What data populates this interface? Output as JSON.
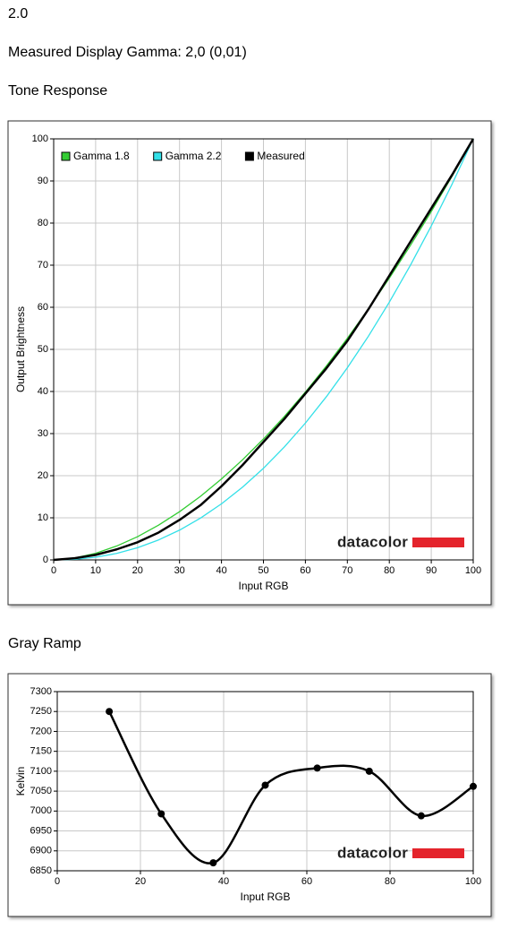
{
  "header": {
    "value": "2.0",
    "text": "Measured Display Gamma: 2,0 (0,01)"
  },
  "chart_data": [
    {
      "type": "line",
      "title": "Tone Response",
      "xlabel": "Input RGB",
      "ylabel": "Output Brightness",
      "watermark": "datacolor",
      "legend": "top-left",
      "grid": true,
      "smooth": false,
      "markers": false,
      "x": [
        0,
        5,
        10,
        15,
        20,
        25,
        30,
        35,
        40,
        45,
        50,
        55,
        60,
        65,
        70,
        75,
        80,
        85,
        90,
        95,
        100
      ],
      "series": [
        {
          "name": "Gamma 1.8",
          "color": "#33cc33",
          "values": [
            0,
            0.46,
            1.58,
            3.29,
            5.52,
            8.25,
            11.45,
            15.11,
            19.22,
            23.76,
            28.72,
            34.09,
            39.87,
            46.05,
            52.62,
            59.58,
            66.92,
            74.64,
            82.72,
            91.18,
            100
          ]
        },
        {
          "name": "Gamma 2.2",
          "color": "#33e0e8",
          "values": [
            0,
            0.14,
            0.63,
            1.54,
            2.9,
            4.74,
            7.07,
            9.93,
            13.32,
            17.26,
            21.76,
            26.84,
            32.5,
            38.76,
            45.63,
            53.1,
            61.21,
            69.94,
            79.31,
            89.33,
            100
          ]
        },
        {
          "name": "Measured",
          "color": "#000000",
          "values": [
            0,
            0.4,
            1.2,
            2.5,
            4.2,
            6.5,
            9.5,
            13,
            17.5,
            22.5,
            28,
            33.5,
            39.5,
            45.5,
            52,
            59.5,
            67.5,
            75.5,
            83.5,
            91.5,
            100
          ]
        }
      ],
      "xlim": [
        0,
        100
      ],
      "xticks": [
        0,
        10,
        20,
        30,
        40,
        50,
        60,
        70,
        80,
        90,
        100
      ],
      "ylim": [
        0,
        100
      ],
      "yticks": [
        0,
        10,
        20,
        30,
        40,
        50,
        60,
        70,
        80,
        90,
        100
      ]
    },
    {
      "type": "line",
      "title": "Gray Ramp",
      "xlabel": "Input RGB",
      "ylabel": "Kelvin",
      "watermark": "datacolor",
      "grid": true,
      "smooth": true,
      "markers": true,
      "x": [
        12.5,
        25,
        37.5,
        50,
        62.5,
        75,
        87.5,
        100
      ],
      "series": [
        {
          "color": "#000000",
          "values": [
            7250,
            6993,
            6870,
            7065,
            7108,
            7100,
            6988,
            7062
          ]
        }
      ],
      "xlim": [
        0,
        100
      ],
      "xticks": [
        0,
        20,
        40,
        60,
        80,
        100
      ],
      "ylim": [
        6850,
        7300
      ],
      "yticks": [
        6850,
        6900,
        6950,
        7000,
        7050,
        7100,
        7150,
        7200,
        7250,
        7300
      ]
    }
  ]
}
